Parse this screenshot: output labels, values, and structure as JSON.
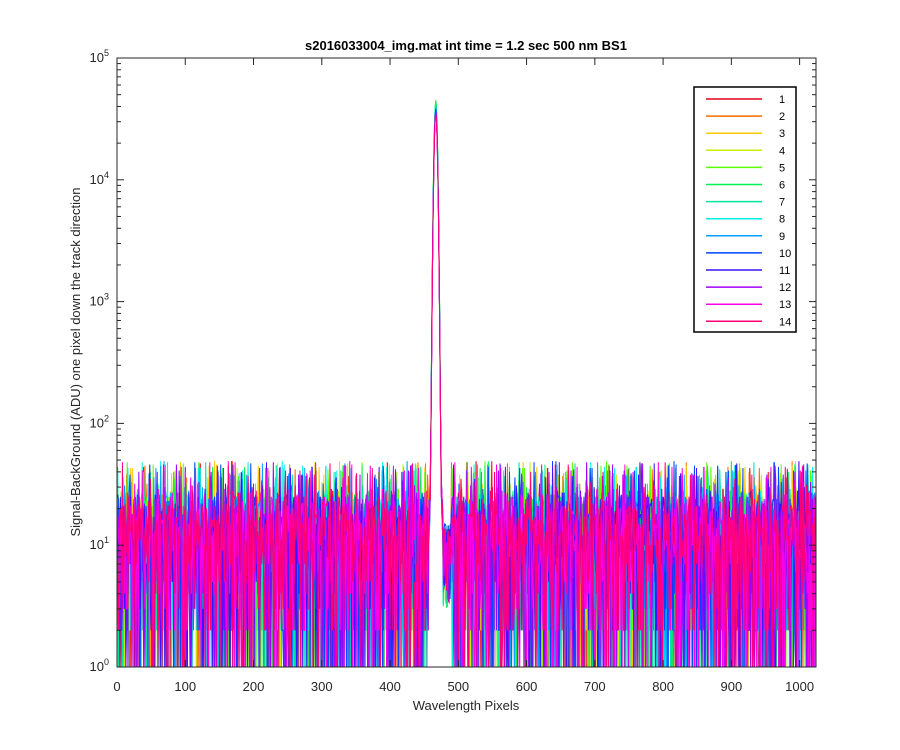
{
  "chart_data": {
    "type": "line",
    "title": "s2016033004_img.mat int time = 1.2 sec  500 nm BS1",
    "xlabel": "Wavelength Pixels",
    "ylabel": "Signal-BackGround (ADU) one pixel down the track direction",
    "xlim": [
      0,
      1024
    ],
    "ylim": [
      1,
      100000
    ],
    "yscale": "log",
    "x_ticks": [
      0,
      100,
      200,
      300,
      400,
      500,
      600,
      700,
      800,
      900,
      1000
    ],
    "y_tick_exponents": [
      0,
      1,
      2,
      3,
      4,
      5
    ],
    "y_tick_base": "10",
    "grid": false,
    "legend_position": "top-right",
    "peak": {
      "x": 467,
      "values": [
        38000,
        40000,
        42000,
        43000,
        44000,
        45000,
        42000,
        40000,
        39000,
        38000,
        37000,
        36000,
        35000,
        34000
      ]
    },
    "noise_floor": {
      "typical_range": [
        5,
        30
      ],
      "max": 50,
      "min": 1
    },
    "series": [
      {
        "name": "1",
        "color": "#e6001a"
      },
      {
        "name": "2",
        "color": "#ff6a00"
      },
      {
        "name": "3",
        "color": "#ffc800"
      },
      {
        "name": "4",
        "color": "#c8f000"
      },
      {
        "name": "5",
        "color": "#5aff00"
      },
      {
        "name": "6",
        "color": "#00f050"
      },
      {
        "name": "7",
        "color": "#00e6a0"
      },
      {
        "name": "8",
        "color": "#00f0e6"
      },
      {
        "name": "9",
        "color": "#00a0ff"
      },
      {
        "name": "10",
        "color": "#0046ff"
      },
      {
        "name": "11",
        "color": "#3c14ff"
      },
      {
        "name": "12",
        "color": "#a000ff"
      },
      {
        "name": "13",
        "color": "#ff00e6"
      },
      {
        "name": "14",
        "color": "#ff0078"
      }
    ]
  }
}
